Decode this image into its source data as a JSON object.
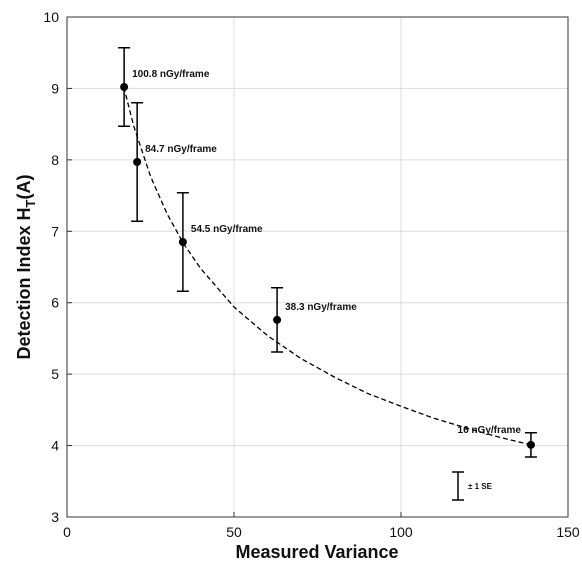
{
  "chart_data": {
    "type": "scatter",
    "x": [
      17.1,
      21.0,
      34.7,
      62.9,
      138.9
    ],
    "values": [
      9.02,
      7.97,
      6.85,
      5.76,
      4.01
    ],
    "errors": [
      0.55,
      0.83,
      0.69,
      0.45,
      0.17
    ],
    "value_labels": [
      "100.8 nGy/frame",
      "84.7 nGy/frame",
      "54.5 nGy/frame",
      "38.3 nGy/frame",
      "16 nGy/frame"
    ],
    "color": "#000000",
    "fit": {
      "x": [
        17,
        20,
        25,
        30,
        35,
        40,
        50,
        60,
        70,
        80,
        90,
        100,
        110,
        120,
        130,
        139
      ],
      "y": [
        9.02,
        8.47,
        7.77,
        7.24,
        6.82,
        6.48,
        5.94,
        5.54,
        5.22,
        4.96,
        4.73,
        4.55,
        4.38,
        4.24,
        4.11,
        4.01
      ]
    },
    "xlabel": "Measured Variance",
    "ylabel": {
      "main": "Detection Index H",
      "sub": "T",
      "rest": "(A)"
    },
    "se_key": "± 1 SE",
    "xlim": [
      0,
      150
    ],
    "ylim": [
      3,
      10
    ],
    "xticks": [
      0,
      50,
      100,
      150
    ],
    "yticks": [
      3,
      4,
      5,
      6,
      7,
      8,
      9,
      10
    ],
    "grid": true
  }
}
